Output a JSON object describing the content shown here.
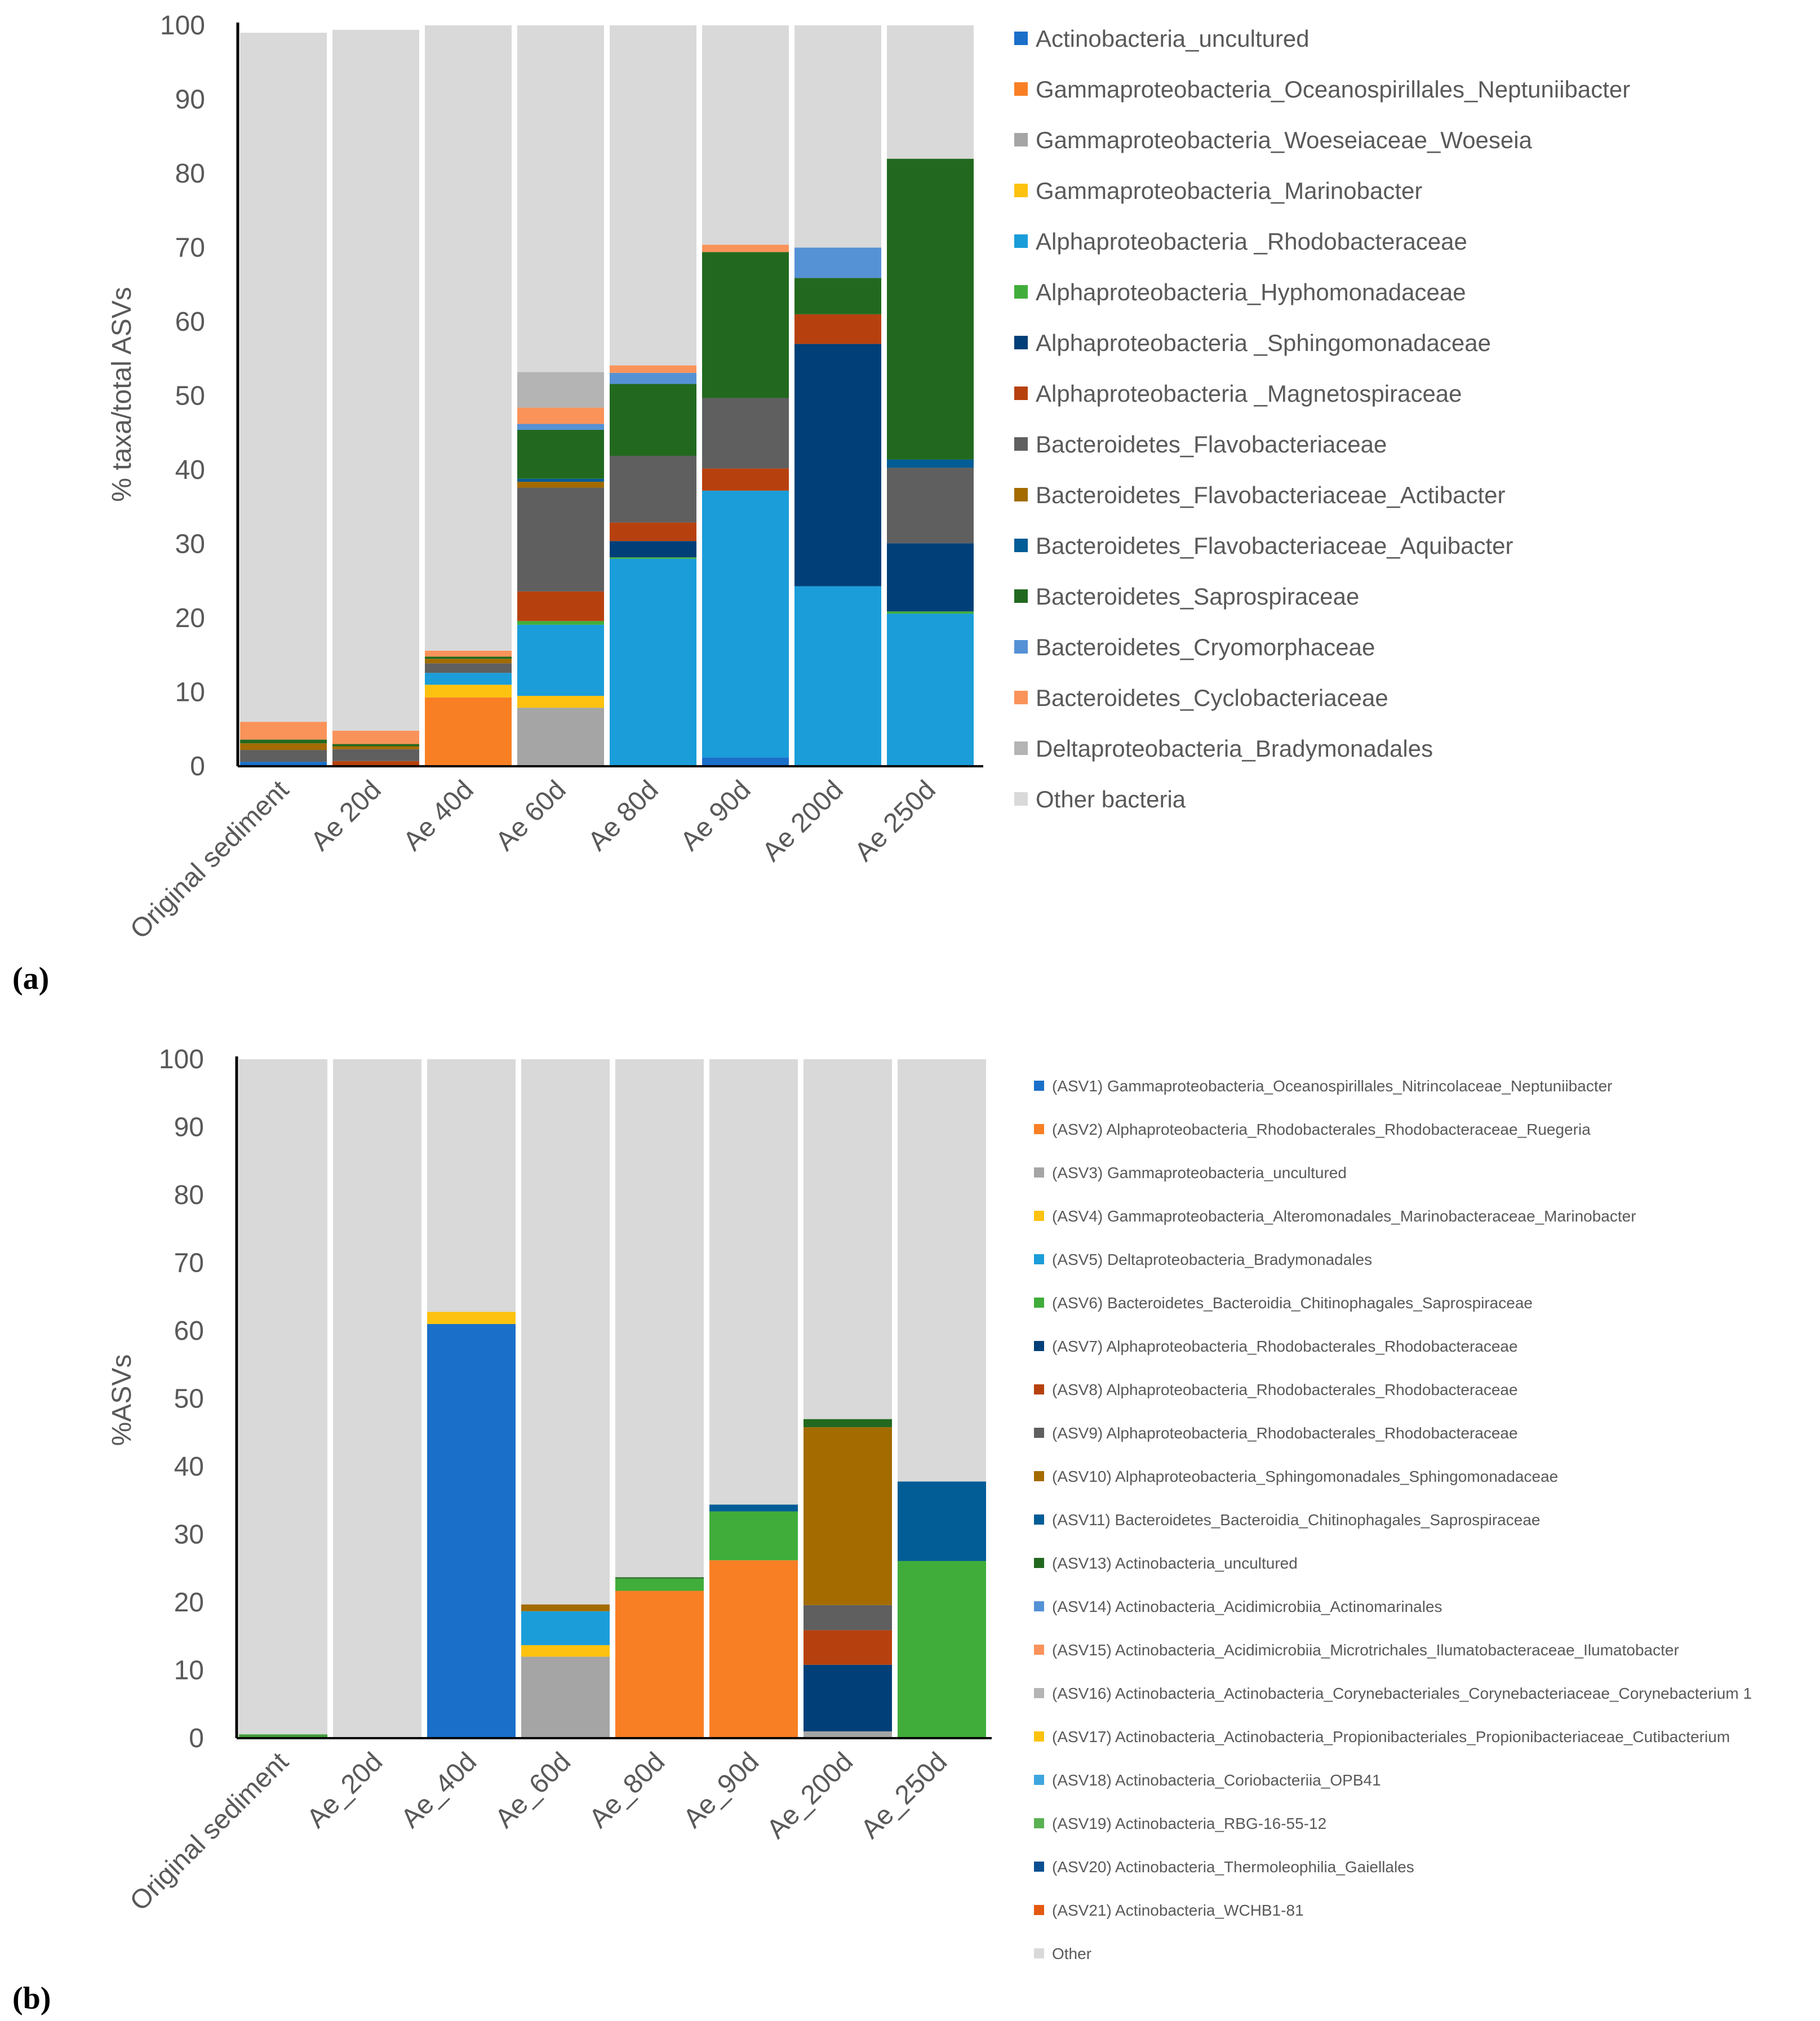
{
  "figure": {
    "panel_labels": [
      "(a)",
      "(b)"
    ]
  },
  "chart_data": [
    {
      "type": "bar",
      "stacked": true,
      "panel": "(a)",
      "title": "",
      "xlabel": "",
      "ylabel": "% taxa/total ASVs",
      "ylim": [
        0,
        100
      ],
      "yticks": [
        "0",
        "10",
        "20",
        "30",
        "40",
        "50",
        "60",
        "70",
        "80",
        "90",
        "100"
      ],
      "grid": false,
      "legend_position": "right",
      "categories": [
        "Original sediment",
        "Ae 20d",
        "Ae 40d",
        "Ae 60d",
        "Ae 80d",
        "Ae 90d",
        "Ae 200d",
        "Ae 250d"
      ],
      "series": [
        {
          "name": "Actinobacteria_uncultured",
          "color": "#1a6fc9",
          "values": [
            0.6,
            0.1,
            0,
            0,
            0,
            1.2,
            0,
            0
          ]
        },
        {
          "name": "Gammaproteobacteria_Oceanospirillales_Neptuniibacter",
          "color": "#f97f24",
          "values": [
            0,
            0,
            9.3,
            0,
            0,
            0,
            0,
            0
          ]
        },
        {
          "name": "Gammaproteobacteria_Woeseiaceae_Woeseia",
          "color": "#a5a5a5",
          "values": [
            0,
            0,
            0,
            7.9,
            0,
            0,
            0,
            0
          ]
        },
        {
          "name": "Gammaproteobacteria_Marinobacter",
          "color": "#fdc20f",
          "values": [
            0,
            0,
            1.7,
            1.6,
            0,
            0,
            0,
            0
          ]
        },
        {
          "name": "Alphaproteobacteria _Rhodobacteraceae",
          "color": "#1b9dd9",
          "values": [
            0,
            0,
            1.6,
            9.6,
            28.0,
            36.0,
            24.3,
            20.6
          ]
        },
        {
          "name": "Alphaproteobacteria_Hyphomonadaceae",
          "color": "#40ad3a",
          "values": [
            0,
            0,
            0,
            0.5,
            0.2,
            0,
            0,
            0.3
          ]
        },
        {
          "name": "Alphaproteobacteria _Sphingomonadaceae",
          "color": "#003f78",
          "values": [
            0,
            0,
            0,
            0,
            2.2,
            0,
            32.7,
            9.2
          ]
        },
        {
          "name": "Alphaproteobacteria _Magnetospiraceae",
          "color": "#b7410e",
          "values": [
            0,
            0.6,
            0,
            4.0,
            2.5,
            3.0,
            4.0,
            0
          ]
        },
        {
          "name": "Bacteroidetes_Flavobacteriaceae",
          "color": "#5f5f5f",
          "values": [
            1.6,
            1.6,
            1.3,
            14.0,
            9.0,
            9.5,
            0,
            10.2
          ]
        },
        {
          "name": "Bacteroidetes_Flavobacteriaceae_Actibacter",
          "color": "#a36b00",
          "values": [
            0.9,
            0.4,
            0.6,
            0.8,
            0,
            0,
            0,
            0
          ]
        },
        {
          "name": "Bacteroidetes_Flavobacteriaceae_Aquibacter",
          "color": "#025c96",
          "values": [
            0,
            0,
            0,
            0.4,
            0,
            0,
            0,
            1.1
          ]
        },
        {
          "name": "Bacteroidetes_Saprospiraceae",
          "color": "#22691f",
          "values": [
            0.5,
            0.3,
            0.3,
            6.6,
            9.7,
            19.7,
            4.9,
            40.6
          ]
        },
        {
          "name": "Bacteroidetes_Cryomorphaceae",
          "color": "#5591d5",
          "values": [
            0,
            0,
            0,
            0.8,
            1.5,
            0,
            4.1,
            0
          ]
        },
        {
          "name": "Bacteroidetes_Cyclobacteriaceae",
          "color": "#f9935a",
          "values": [
            2.4,
            1.8,
            0.8,
            2.2,
            1.0,
            1.0,
            0,
            0
          ]
        },
        {
          "name": "Deltaproteobacteria_Bradymonadales",
          "color": "#b4b4b4",
          "values": [
            0,
            0,
            0,
            4.8,
            0,
            0,
            0,
            0
          ]
        },
        {
          "name": "Other bacteria",
          "color": "#d9d9d9",
          "values": [
            93.0,
            94.6,
            84.4,
            46.8,
            45.9,
            29.6,
            30.0,
            18.0
          ]
        }
      ]
    },
    {
      "type": "bar",
      "stacked": true,
      "panel": "(b)",
      "title": "",
      "xlabel": "",
      "ylabel": "%ASVs",
      "ylim": [
        0,
        100
      ],
      "yticks": [
        "0",
        "10",
        "20",
        "30",
        "40",
        "50",
        "60",
        "70",
        "80",
        "90",
        "100"
      ],
      "grid": false,
      "legend_position": "right",
      "categories": [
        "Original sediment",
        "Ae_20d",
        "Ae_40d",
        "Ae_60d",
        "Ae_80d",
        "Ae_90d",
        "Ae_200d",
        "Ae_250d"
      ],
      "series": [
        {
          "name": "(ASV1) Gammaproteobacteria_Oceanospirillales_Nitrincolaceae_Neptuniibacter",
          "color": "#1a6fc9",
          "values": [
            0,
            0,
            61.0,
            0,
            0,
            0,
            0,
            0
          ]
        },
        {
          "name": "(ASV2) Alphaproteobacteria_Rhodobacterales_Rhodobacteraceae_Ruegeria",
          "color": "#f97f24",
          "values": [
            0,
            0,
            0,
            0,
            21.7,
            26.2,
            0,
            0
          ]
        },
        {
          "name": "(ASV3) Gammaproteobacteria_uncultured",
          "color": "#a5a5a5",
          "values": [
            0,
            0,
            0,
            12.0,
            0,
            0,
            1.0,
            0
          ]
        },
        {
          "name": "(ASV4) Gammaproteobacteria_Alteromonadales_Marinobacteraceae_Marinobacter",
          "color": "#fdc20f",
          "values": [
            0,
            0,
            1.8,
            1.7,
            0,
            0,
            0,
            0
          ]
        },
        {
          "name": "(ASV5) Deltaproteobacteria_Bradymonadales",
          "color": "#1b9dd9",
          "values": [
            0,
            0,
            0,
            5.0,
            0,
            0,
            0,
            0
          ]
        },
        {
          "name": "(ASV6) Bacteroidetes_Bacteroidia_Chitinophagales_Saprospiraceae",
          "color": "#40ad3a",
          "values": [
            0.3,
            0,
            0,
            0,
            1.8,
            7.2,
            0,
            26.1
          ]
        },
        {
          "name": "(ASV7) Alphaproteobacteria_Rhodobacterales_Rhodobacteraceae",
          "color": "#003f78",
          "values": [
            0,
            0,
            0,
            0,
            0,
            0,
            9.8,
            0
          ]
        },
        {
          "name": "(ASV8) Alphaproteobacteria_Rhodobacterales_Rhodobacteraceae",
          "color": "#b7410e",
          "values": [
            0,
            0,
            0,
            0,
            0,
            0,
            5.1,
            0
          ]
        },
        {
          "name": "(ASV9) Alphaproteobacteria_Rhodobacterales_Rhodobacteraceae",
          "color": "#5f5f5f",
          "values": [
            0,
            0,
            0,
            0,
            0,
            0,
            3.7,
            0
          ]
        },
        {
          "name": "(ASV10) Alphaproteobacteria_Sphingomonadales_Sphingomonadaceae",
          "color": "#a36b00",
          "values": [
            0,
            0,
            0,
            1.0,
            0,
            0,
            26.2,
            0
          ]
        },
        {
          "name": "(ASV11) Bacteroidetes_Bacteroidia_Chitinophagales_Saprospiraceae",
          "color": "#025c96",
          "values": [
            0,
            0,
            0,
            0,
            0,
            1.0,
            0,
            11.7
          ]
        },
        {
          "name": "(ASV13) Actinobacteria_uncultured",
          "color": "#22691f",
          "values": [
            0.1,
            0,
            0,
            0,
            0.2,
            0,
            1.2,
            0
          ]
        },
        {
          "name": "(ASV14) Actinobacteria_Acidimicrobiia_Actinomarinales",
          "color": "#5591d5",
          "values": [
            0,
            0,
            0,
            0,
            0,
            0,
            0,
            0
          ]
        },
        {
          "name": "(ASV15) Actinobacteria_Acidimicrobiia_Microtrichales_Ilumatobacteraceae_Ilumatobacter",
          "color": "#f9935a",
          "values": [
            0,
            0,
            0,
            0,
            0,
            0,
            0,
            0
          ]
        },
        {
          "name": "(ASV16) Actinobacteria_Actinobacteria_Corynebacteriales_Corynebacteriaceae_Corynebacterium 1",
          "color": "#b4b4b4",
          "values": [
            0,
            0,
            0,
            0,
            0,
            0,
            0,
            0
          ]
        },
        {
          "name": "(ASV17) Actinobacteria_Actinobacteria_Propionibacteriales_Propionibacteriaceae_Cutibacterium",
          "color": "#fdc20f",
          "values": [
            0,
            0,
            0,
            0,
            0,
            0,
            0,
            0
          ]
        },
        {
          "name": "(ASV18) Actinobacteria_Coriobacteriia_OPB41",
          "color": "#3ea5de",
          "values": [
            0,
            0,
            0,
            0,
            0,
            0,
            0,
            0
          ]
        },
        {
          "name": "(ASV19) Actinobacteria_RBG-16-55-12",
          "color": "#5ab153",
          "values": [
            0.2,
            0,
            0,
            0,
            0,
            0,
            0,
            0
          ]
        },
        {
          "name": "(ASV20) Actinobacteria_Thermoleophilia_Gaiellales",
          "color": "#0b4f92",
          "values": [
            0,
            0,
            0,
            0,
            0,
            0,
            0,
            0
          ]
        },
        {
          "name": "(ASV21) Actinobacteria_WCHB1-81",
          "color": "#e4590f",
          "values": [
            0,
            0,
            0,
            0,
            0,
            0,
            0,
            0
          ]
        },
        {
          "name": "Other",
          "color": "#d9d9d9",
          "values": [
            99.4,
            100,
            37.2,
            80.3,
            76.3,
            65.6,
            53.0,
            62.2
          ]
        }
      ]
    }
  ]
}
